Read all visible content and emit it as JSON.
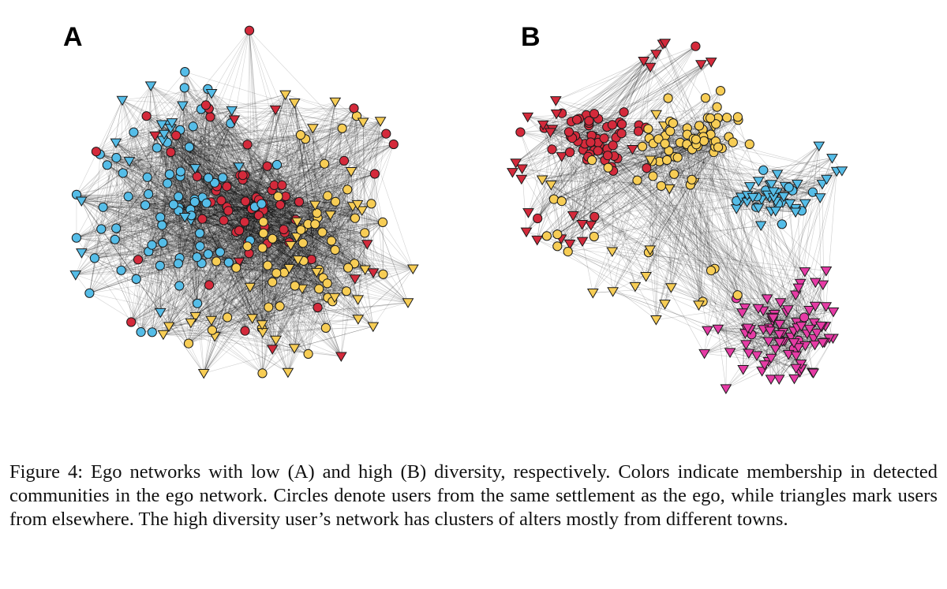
{
  "figure": {
    "panels": [
      {
        "label": "A",
        "communities": [
          {
            "color_name": "blue",
            "color": "#55bde8"
          },
          {
            "color_name": "red",
            "color": "#d42a3b"
          },
          {
            "color_name": "yellow",
            "color": "#f7cd55"
          }
        ]
      },
      {
        "label": "B",
        "communities": [
          {
            "color_name": "red",
            "color": "#d42a3b"
          },
          {
            "color_name": "yellow",
            "color": "#f7cd55"
          },
          {
            "color_name": "blue",
            "color": "#55bde8"
          },
          {
            "color_name": "magenta",
            "color": "#e63ba5"
          }
        ]
      }
    ],
    "node_shapes": {
      "same_settlement": "circle",
      "elsewhere": "triangle-down"
    },
    "edge_color": "#000000",
    "node_outline_color": "#1a1a1a"
  },
  "caption": {
    "text": "Figure 4: Ego networks with low (A) and high (B) diversity, respectively. Colors indicate membership in detected communities in the ego network. Circles denote users from the same settlement as the ego, while triangles mark users from elsewhere. The high diversity user’s network has clusters of alters mostly from different towns."
  }
}
